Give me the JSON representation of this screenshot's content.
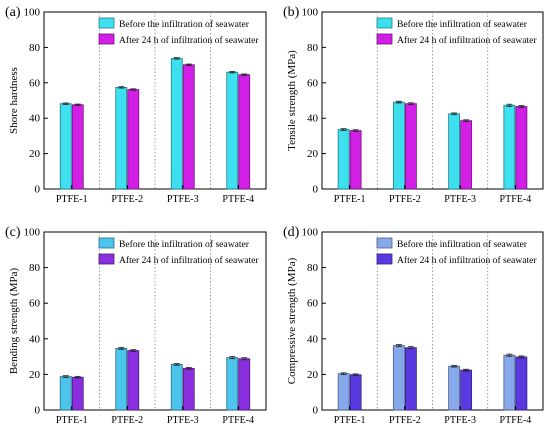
{
  "chart_data": [
    {
      "panel_label": "(a)",
      "type": "bar",
      "ylabel": "Shore hardness",
      "ylim": [
        0,
        100
      ],
      "yticks": [
        0,
        20,
        40,
        60,
        80,
        100
      ],
      "categories": [
        "PTFE-1",
        "PTFE-2",
        "PTFE-3",
        "PTFE-4"
      ],
      "legend_position": "top-right",
      "series": [
        {
          "name": "Before the infiltration of seawater",
          "color": "#3ee0f0",
          "values": [
            48.2,
            57.4,
            73.8,
            66.0
          ],
          "errors": [
            0.4,
            0.4,
            0.4,
            0.4
          ]
        },
        {
          "name": "After 24 h of infiltration of seawater",
          "color": "#d11fe6",
          "values": [
            47.6,
            56.2,
            70.2,
            64.6
          ],
          "errors": [
            0.4,
            0.4,
            0.4,
            0.4
          ]
        }
      ]
    },
    {
      "panel_label": "(b)",
      "type": "bar",
      "ylabel": "Tensile strength (MPa)",
      "ylim": [
        0,
        100
      ],
      "yticks": [
        0,
        20,
        40,
        60,
        80,
        100
      ],
      "categories": [
        "PTFE-1",
        "PTFE-2",
        "PTFE-3",
        "PTFE-4"
      ],
      "legend_position": "top-right",
      "series": [
        {
          "name": "Before the infiltration of seawater",
          "color": "#3ee0f0",
          "values": [
            33.6,
            49.1,
            42.5,
            47.3
          ],
          "errors": [
            0.5,
            0.5,
            0.5,
            0.6
          ]
        },
        {
          "name": "After 24 h of infiltration of seawater",
          "color": "#d11fe6",
          "values": [
            33.0,
            48.2,
            38.6,
            46.6
          ],
          "errors": [
            0.5,
            0.5,
            0.5,
            0.6
          ]
        }
      ]
    },
    {
      "panel_label": "(c)",
      "type": "bar",
      "ylabel": "Bending strength (MPa)",
      "ylim": [
        0,
        100
      ],
      "yticks": [
        0,
        20,
        40,
        60,
        80,
        100
      ],
      "categories": [
        "PTFE-1",
        "PTFE-2",
        "PTFE-3",
        "PTFE-4"
      ],
      "legend_position": "top-right",
      "series": [
        {
          "name": "Before the infiltration of seawater",
          "color": "#4cc4ec",
          "values": [
            18.8,
            34.6,
            25.6,
            29.4
          ],
          "errors": [
            0.5,
            0.5,
            0.5,
            0.6
          ]
        },
        {
          "name": "After 24 h of infiltration of seawater",
          "color": "#8a2fe0",
          "values": [
            18.4,
            33.4,
            23.4,
            28.8
          ],
          "errors": [
            0.5,
            0.5,
            0.5,
            0.6
          ]
        }
      ]
    },
    {
      "panel_label": "(d)",
      "type": "bar",
      "ylabel": "Compressive strength (MPa)",
      "ylim": [
        0,
        100
      ],
      "yticks": [
        0,
        20,
        40,
        60,
        80,
        100
      ],
      "categories": [
        "PTFE-1",
        "PTFE-2",
        "PTFE-3",
        "PTFE-4"
      ],
      "legend_position": "top-right",
      "series": [
        {
          "name": "Before the infiltration of seawater",
          "color": "#88a8ec",
          "values": [
            20.4,
            36.2,
            24.6,
            30.8
          ],
          "errors": [
            0.5,
            0.6,
            0.5,
            0.6
          ]
        },
        {
          "name": "After 24 h of infiltration of seawater",
          "color": "#5a3ae0",
          "values": [
            19.8,
            35.0,
            22.4,
            29.8
          ],
          "errors": [
            0.5,
            0.6,
            0.5,
            0.6
          ]
        }
      ]
    }
  ]
}
